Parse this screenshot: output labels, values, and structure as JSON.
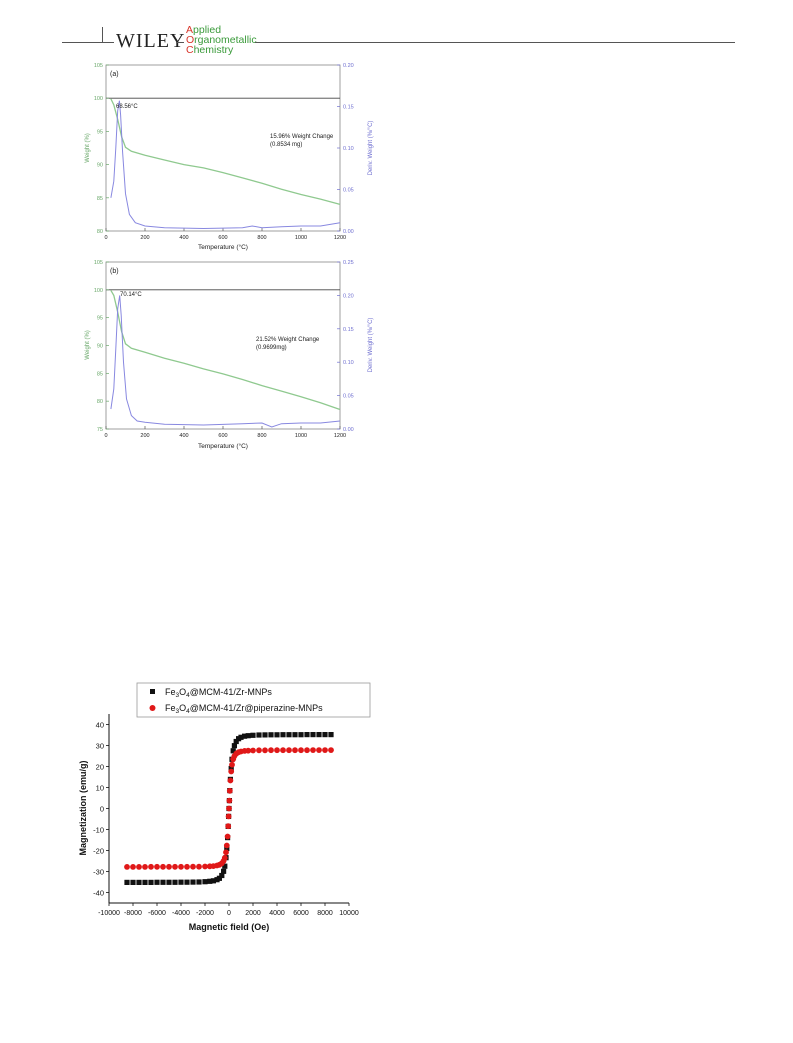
{
  "header": {
    "publisher": "WILEY",
    "journal_lines": [
      {
        "initial": "A",
        "rest": "pplied"
      },
      {
        "initial": "O",
        "rest": "rganometallic"
      },
      {
        "initial": "C",
        "rest": "hemistry"
      }
    ]
  },
  "figures": {
    "tga_a": {
      "panel_label": "(a)",
      "ylabel_left": "Weight (%)",
      "ylabel_right": "Deriv. Weight (%/°C)",
      "xlabel": "Temperature (°C)",
      "peak_label": "68.56°C",
      "annotation_line1": "15.96% Weight Change",
      "annotation_line2": "(0.8534 mg)",
      "left_ticks": [
        "80",
        "85",
        "90",
        "95",
        "100",
        "105"
      ],
      "right_ticks": [
        "0.00",
        "0.05",
        "0.10",
        "0.15",
        "0.20"
      ],
      "x_ticks": [
        "0",
        "200",
        "400",
        "600",
        "800",
        "1000",
        "1200"
      ]
    },
    "tga_b": {
      "panel_label": "(b)",
      "ylabel_left": "Weight (%)",
      "ylabel_right": "Deriv. Weight (%/°C)",
      "xlabel": "Temperature (°C)",
      "peak_label": "70.14°C",
      "annotation_line1": "21.52% Weight Change",
      "annotation_line2": "(0.9699mg)",
      "left_ticks": [
        "75",
        "80",
        "85",
        "90",
        "95",
        "100",
        "105"
      ],
      "right_ticks": [
        "0.00",
        "0.05",
        "0.10",
        "0.15",
        "0.20",
        "0.25"
      ],
      "x_ticks": [
        "0",
        "200",
        "400",
        "600",
        "800",
        "1000",
        "1200"
      ]
    },
    "vsm": {
      "ylabel": "Magnetization (emu/g)",
      "xlabel": "Magnetic field (Oe)",
      "legend": [
        {
          "pre": "Fe",
          "sub1": "3",
          "mid": "O",
          "sub2": "4",
          "post": "@MCM-41/Zr-MNPs"
        },
        {
          "pre": "Fe",
          "sub1": "3",
          "mid": "O",
          "sub2": "4",
          "post": "@MCM-41/Zr@piperazine-MNPs"
        }
      ],
      "y_ticks": [
        "-40",
        "-30",
        "-20",
        "-10",
        "0",
        "10",
        "20",
        "30",
        "40"
      ],
      "x_ticks": [
        "-10000",
        "-8000",
        "-6000",
        "-4000",
        "-2000",
        "0",
        "2000",
        "4000",
        "6000",
        "8000",
        "10000"
      ]
    }
  },
  "chart_data": [
    {
      "type": "line",
      "panel": "(a)",
      "xlabel": "Temperature (°C)",
      "ylabel": "Weight (%)",
      "ylabel_right": "Deriv. Weight (%/°C)",
      "xlim": [
        0,
        1200
      ],
      "ylim": [
        80,
        105
      ],
      "ylim_right": [
        0.0,
        0.2
      ],
      "grid": false,
      "colors": {
        "weight": "#8fc98f",
        "deriv": "#8888e0",
        "axis_left": "#6aa86a",
        "axis_right": "#7070d0"
      },
      "series": [
        {
          "axis": "left",
          "x": [
            25,
            40,
            60,
            80,
            100,
            130,
            200,
            300,
            400,
            500,
            600,
            700,
            800,
            900,
            1000,
            1100,
            1200
          ],
          "y": [
            99.9,
            99.0,
            96.8,
            94.2,
            92.6,
            92.0,
            91.4,
            90.7,
            90.0,
            89.5,
            88.8,
            88.0,
            87.2,
            86.3,
            85.5,
            84.8,
            84.0
          ]
        },
        {
          "axis": "right",
          "x": [
            25,
            40,
            50,
            60,
            68.56,
            75,
            85,
            100,
            120,
            150,
            200,
            300,
            500,
            700,
            750,
            800,
            900,
            1000,
            1100,
            1200
          ],
          "y": [
            0.04,
            0.06,
            0.1,
            0.145,
            0.157,
            0.14,
            0.095,
            0.045,
            0.02,
            0.01,
            0.006,
            0.004,
            0.003,
            0.004,
            0.006,
            0.004,
            0.005,
            0.006,
            0.006,
            0.01
          ]
        }
      ],
      "reference_lines": [
        {
          "axis": "left",
          "y": 100
        }
      ],
      "annotations": [
        "68.56°C",
        "15.96% Weight Change",
        "(0.8534 mg)"
      ]
    },
    {
      "type": "line",
      "panel": "(b)",
      "xlabel": "Temperature (°C)",
      "ylabel": "Weight (%)",
      "ylabel_right": "Deriv. Weight (%/°C)",
      "xlim": [
        0,
        1200
      ],
      "ylim": [
        75,
        105
      ],
      "ylim_right": [
        0.0,
        0.25
      ],
      "grid": false,
      "colors": {
        "weight": "#8fc98f",
        "deriv": "#8888e0",
        "axis_left": "#6aa86a",
        "axis_right": "#7070d0"
      },
      "series": [
        {
          "axis": "left",
          "x": [
            25,
            40,
            60,
            80,
            100,
            130,
            200,
            300,
            400,
            500,
            600,
            700,
            800,
            900,
            1000,
            1100,
            1200
          ],
          "y": [
            99.9,
            99.0,
            96.0,
            92.5,
            90.3,
            89.5,
            88.8,
            87.7,
            86.8,
            85.8,
            84.9,
            83.9,
            82.8,
            81.8,
            80.8,
            79.7,
            78.5
          ]
        },
        {
          "axis": "right",
          "x": [
            25,
            40,
            50,
            60,
            70.14,
            78,
            90,
            105,
            130,
            160,
            200,
            300,
            500,
            700,
            800,
            850,
            900,
            1000,
            1100,
            1200
          ],
          "y": [
            0.03,
            0.06,
            0.12,
            0.18,
            0.2,
            0.17,
            0.1,
            0.045,
            0.02,
            0.012,
            0.01,
            0.007,
            0.006,
            0.008,
            0.009,
            0.003,
            0.008,
            0.009,
            0.009,
            0.012
          ]
        }
      ],
      "reference_lines": [
        {
          "axis": "left",
          "y": 100
        }
      ],
      "annotations": [
        "70.14°C",
        "21.52% Weight Change",
        "(0.9699mg)"
      ]
    },
    {
      "type": "scatter",
      "xlabel": "Magnetic field (Oe)",
      "ylabel": "Magnetization (emu/g)",
      "xlim": [
        -10000,
        10000
      ],
      "ylim": [
        -45,
        45
      ],
      "grid": false,
      "legend_position": "top",
      "series": [
        {
          "name": "Fe3O4@MCM-41/Zr-MNPs",
          "marker": "square",
          "color": "#111111",
          "Ms": 35.2,
          "H0": 280,
          "x": [
            -8500,
            -8000,
            -7500,
            -7000,
            -6500,
            -6000,
            -5500,
            -5000,
            -4500,
            -4000,
            -3500,
            -3000,
            -2500,
            -2000,
            -1600,
            -1300,
            -1000,
            -800,
            -600,
            -450,
            -350,
            -250,
            -180,
            -120,
            -70,
            -30,
            0,
            30,
            70,
            120,
            180,
            250,
            350,
            450,
            600,
            800,
            1000,
            1300,
            1600,
            2000,
            2500,
            3000,
            3500,
            4000,
            4500,
            5000,
            5500,
            6000,
            6500,
            7000,
            7500,
            8000,
            8500
          ]
        },
        {
          "name": "Fe3O4@MCM-41/Zr@piperazine-MNPs",
          "marker": "circle",
          "color": "#e01818",
          "Ms": 27.8,
          "H0": 220,
          "x": [
            -8500,
            -8000,
            -7500,
            -7000,
            -6500,
            -6000,
            -5500,
            -5000,
            -4500,
            -4000,
            -3500,
            -3000,
            -2500,
            -2000,
            -1600,
            -1300,
            -1000,
            -800,
            -600,
            -450,
            -350,
            -250,
            -180,
            -120,
            -70,
            -30,
            0,
            30,
            70,
            120,
            180,
            250,
            350,
            450,
            600,
            800,
            1000,
            1300,
            1600,
            2000,
            2500,
            3000,
            3500,
            4000,
            4500,
            5000,
            5500,
            6000,
            6500,
            7000,
            7500,
            8000,
            8500
          ]
        }
      ]
    }
  ]
}
